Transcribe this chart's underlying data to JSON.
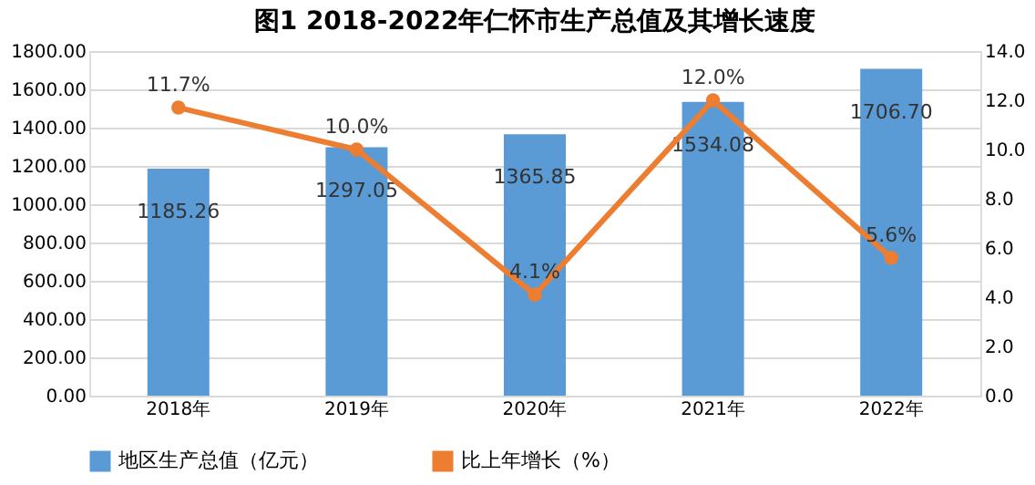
{
  "chart_data": {
    "type": "bar",
    "title": "图1  2018-2022年仁怀市生产总值及其增长速度",
    "categories": [
      "2018年",
      "2019年",
      "2020年",
      "2021年",
      "2022年"
    ],
    "series": [
      {
        "name": "地区生产总值（亿元）",
        "color": "#5b9bd5",
        "values": [
          1185.26,
          1297.05,
          1365.85,
          1534.08,
          1706.7
        ],
        "value_labels": [
          "1185.26",
          "1297.05",
          "1365.85",
          "1534.08",
          "1706.70"
        ]
      },
      {
        "name": "比上年增长（%）",
        "type": "line",
        "axis": "y2",
        "color": "#ed7d31",
        "values": [
          11.7,
          10.0,
          4.1,
          12.0,
          5.6
        ],
        "value_labels": [
          "11.7%",
          "10.0%",
          "4.1%",
          "12.0%",
          "5.6%"
        ],
        "marker": "circle"
      }
    ],
    "ylim": [
      0,
      1800
    ],
    "yticks": [
      {
        "value": 0,
        "label": "0.00"
      },
      {
        "value": 200,
        "label": "200.00"
      },
      {
        "value": 400,
        "label": "400.00"
      },
      {
        "value": 600,
        "label": "600.00"
      },
      {
        "value": 800,
        "label": "800.00"
      },
      {
        "value": 1000,
        "label": "1000.00"
      },
      {
        "value": 1200,
        "label": "1200.00"
      },
      {
        "value": 1400,
        "label": "1400.00"
      },
      {
        "value": 1600,
        "label": "1600.00"
      },
      {
        "value": 1800,
        "label": "1800.00"
      }
    ],
    "y2lim": [
      0,
      14
    ],
    "y2ticks": [
      {
        "value": 0,
        "label": "0.0"
      },
      {
        "value": 2,
        "label": "2.0"
      },
      {
        "value": 4,
        "label": "4.0"
      },
      {
        "value": 6,
        "label": "6.0"
      },
      {
        "value": 8,
        "label": "8.0"
      },
      {
        "value": 10,
        "label": "10.0"
      },
      {
        "value": 12,
        "label": "12.0"
      },
      {
        "value": 14,
        "label": "14.0"
      }
    ],
    "grid": "y",
    "legend": "bottom"
  }
}
